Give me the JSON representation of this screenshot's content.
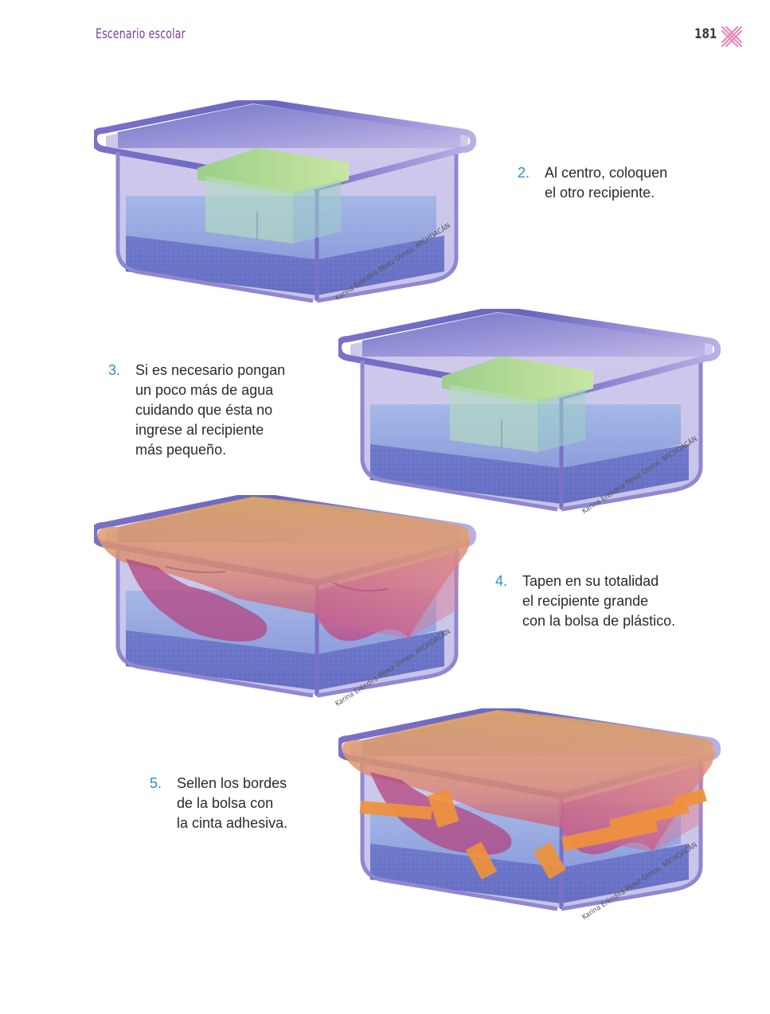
{
  "header": {
    "title": "Escenario escolar",
    "page_number": "181"
  },
  "steps": [
    {
      "number": "2.",
      "text": "Al centro, coloquen\nel otro recipiente."
    },
    {
      "number": "3.",
      "text": "Si es necesario pongan\nun poco más de agua\ncuidando que ésta no\ningrese al recipiente\nmás pequeño."
    },
    {
      "number": "4.",
      "text": "Tapen en su totalidad\nel recipiente grande\ncon la bolsa de plástico."
    },
    {
      "number": "5.",
      "text": "Sellen los bordes\nde la bolsa con\nla cinta adhesiva."
    }
  ],
  "credit": "Karina Eréndira Pérez Olmos, MICHOACÁN",
  "colors": {
    "header": "#7a3f98",
    "step_number": "#2e8ec8",
    "container": "#8b7fd0",
    "water": "#8ecaf0",
    "small_container": "#a8d89a",
    "bag": "#e6a35a",
    "tape": "#f0923c"
  }
}
